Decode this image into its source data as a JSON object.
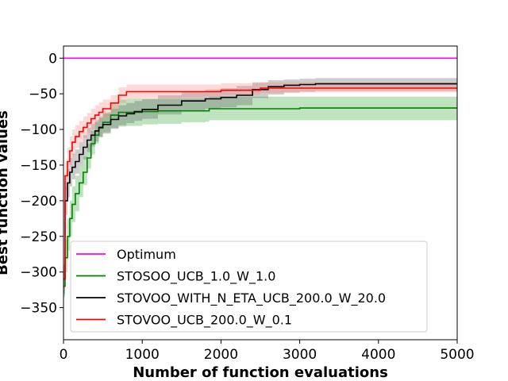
{
  "chart_data": {
    "type": "line",
    "title": "",
    "xlabel": "Number of function evaluations",
    "ylabel": "Best function values",
    "xlim": [
      0,
      5000
    ],
    "ylim": [
      -395,
      17
    ],
    "xticks": [
      0,
      1000,
      2000,
      3000,
      4000,
      5000
    ],
    "yticks": [
      0,
      -50,
      -100,
      -150,
      -200,
      -250,
      -300,
      -350
    ],
    "xtick_labels": [
      "0",
      "1000",
      "2000",
      "3000",
      "4000",
      "5000"
    ],
    "ytick_labels": [
      "0",
      "−50",
      "−100",
      "−150",
      "−200",
      "−250",
      "−300",
      "−350"
    ],
    "grid": false,
    "legend_position": "lower-left",
    "series": [
      {
        "name": "Optimum",
        "color": "#ff00ff",
        "x": [
          0,
          5000
        ],
        "y": [
          0,
          0
        ]
      },
      {
        "name": "STOSOO_UCB_1.0_W_1.0",
        "color": "#008000",
        "band_color": "#2ca02c",
        "x": [
          0,
          20,
          50,
          80,
          110,
          150,
          200,
          250,
          300,
          350,
          400,
          450,
          500,
          600,
          700,
          800,
          1000,
          1200,
          1500,
          1800,
          1850,
          2500,
          3000,
          4000,
          5000
        ],
        "y": [
          -320,
          -280,
          -250,
          -225,
          -205,
          -190,
          -175,
          -160,
          -140,
          -120,
          -108,
          -98,
          -90,
          -80,
          -76,
          -76,
          -75,
          -74,
          -74,
          -74,
          -71,
          -71,
          -70,
          -70,
          -70
        ],
        "lower": [
          -335,
          -300,
          -270,
          -250,
          -230,
          -215,
          -195,
          -178,
          -155,
          -135,
          -120,
          -110,
          -104,
          -98,
          -96,
          -95,
          -93,
          -92,
          -90,
          -89,
          -87,
          -87,
          -87,
          -87,
          -87
        ],
        "upper": [
          -300,
          -255,
          -225,
          -200,
          -180,
          -165,
          -152,
          -138,
          -120,
          -102,
          -90,
          -84,
          -76,
          -64,
          -58,
          -57,
          -57,
          -57,
          -57,
          -56,
          -54,
          -54,
          -54,
          -54,
          -54
        ]
      },
      {
        "name": "STOVOO_WITH_N_ETA_UCB_200.0_W_20.0",
        "color": "#000000",
        "band_color": "#555555",
        "x": [
          0,
          20,
          50,
          80,
          110,
          150,
          200,
          250,
          300,
          350,
          400,
          450,
          500,
          600,
          700,
          800,
          900,
          1000,
          1200,
          1500,
          1800,
          2000,
          2200,
          2400,
          2600,
          2800,
          3000,
          3200,
          4000,
          5000
        ],
        "y": [
          -310,
          -200,
          -175,
          -160,
          -153,
          -145,
          -135,
          -125,
          -115,
          -108,
          -102,
          -97,
          -93,
          -86,
          -81,
          -78,
          -75,
          -72,
          -66,
          -60,
          -57,
          -55,
          -52,
          -44,
          -40,
          -38,
          -37,
          -36,
          -36,
          -36
        ],
        "lower": [
          -330,
          -220,
          -195,
          -180,
          -170,
          -162,
          -152,
          -142,
          -132,
          -124,
          -117,
          -111,
          -106,
          -99,
          -94,
          -91,
          -88,
          -85,
          -79,
          -73,
          -71,
          -69,
          -66,
          -56,
          -51,
          -48,
          -47,
          -46,
          -46,
          -46
        ],
        "upper": [
          -290,
          -180,
          -155,
          -140,
          -134,
          -128,
          -118,
          -108,
          -98,
          -92,
          -87,
          -82,
          -78,
          -71,
          -66,
          -63,
          -60,
          -57,
          -52,
          -47,
          -44,
          -42,
          -39,
          -34,
          -31,
          -30,
          -29,
          -28,
          -28,
          -28
        ]
      },
      {
        "name": "STOVOO_UCB_200.0_W_0.1",
        "color": "#ff0000",
        "band_color": "#ff7f7f",
        "x": [
          0,
          20,
          50,
          80,
          110,
          150,
          200,
          250,
          300,
          350,
          400,
          450,
          500,
          600,
          700,
          800,
          1000,
          1500,
          1800,
          2000,
          2400,
          2500,
          3000,
          4000,
          5000
        ],
        "y": [
          -310,
          -165,
          -145,
          -130,
          -118,
          -110,
          -103,
          -97,
          -91,
          -85,
          -80,
          -76,
          -71,
          -63,
          -52,
          -47,
          -47,
          -47,
          -47,
          -45,
          -45,
          -42,
          -42,
          -42,
          -42
        ],
        "lower": [
          -325,
          -185,
          -165,
          -150,
          -136,
          -126,
          -118,
          -112,
          -105,
          -99,
          -93,
          -88,
          -82,
          -74,
          -63,
          -57,
          -56,
          -55,
          -54,
          -52,
          -51,
          -49,
          -48,
          -48,
          -48
        ],
        "upper": [
          -295,
          -145,
          -125,
          -110,
          -100,
          -94,
          -88,
          -82,
          -77,
          -71,
          -66,
          -62,
          -58,
          -52,
          -41,
          -37,
          -37,
          -37,
          -37,
          -35,
          -35,
          -34,
          -34,
          -34,
          -34
        ]
      }
    ]
  }
}
